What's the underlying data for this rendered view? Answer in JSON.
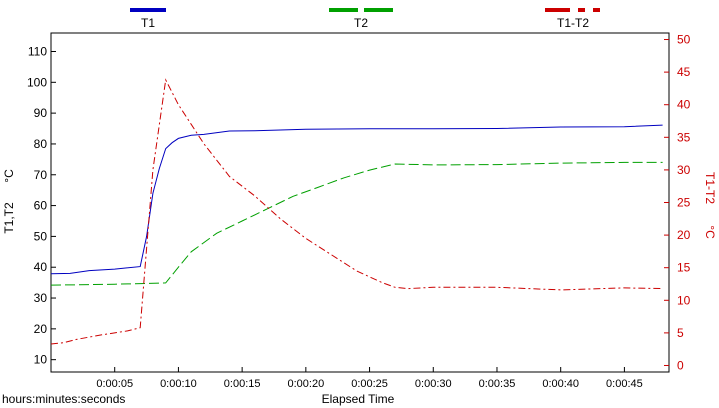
{
  "chart_data": {
    "type": "line",
    "xlabel": "Elapsed Time",
    "x_unit_label": "hours:minutes:seconds",
    "ylabel_left": "T1,T2",
    "ylabel_left_unit": "°C",
    "ylabel_right": "T1-T2",
    "ylabel_right_unit": "°C",
    "xlim": [
      0,
      48.5
    ],
    "ylim_left": [
      6,
      116
    ],
    "ylim_right": [
      -1,
      51
    ],
    "x_ticks": [
      5,
      10,
      15,
      20,
      25,
      30,
      35,
      40,
      45
    ],
    "x_tick_labels": [
      "0:00:05",
      "0:00:10",
      "0:00:15",
      "0:00:20",
      "0:00:25",
      "0:00:30",
      "0:00:35",
      "0:00:40",
      "0:00:45"
    ],
    "y_ticks_left": [
      10,
      20,
      30,
      40,
      50,
      60,
      70,
      80,
      90,
      100,
      110
    ],
    "y_ticks_right": [
      0,
      5,
      10,
      15,
      20,
      25,
      30,
      35,
      40,
      45,
      50
    ],
    "legend_position": "top",
    "series": [
      {
        "name": "T1",
        "axis": "left",
        "color": "#0000c0",
        "style": "solid",
        "x": [
          0,
          1.5,
          3,
          5,
          7,
          7.5,
          8,
          8.5,
          9,
          9.5,
          10,
          11,
          12,
          14,
          16,
          20,
          25,
          30,
          35,
          40,
          45,
          48
        ],
        "values": [
          37.9,
          38,
          38.9,
          39.4,
          40.2,
          50,
          64,
          72,
          78.5,
          80.4,
          81.8,
          82.8,
          83.1,
          84.2,
          84.3,
          84.8,
          84.9,
          84.9,
          85,
          85.5,
          85.6,
          86.1
        ]
      },
      {
        "name": "T2",
        "axis": "left",
        "color": "#00a000",
        "style": "dashed",
        "x": [
          0,
          2,
          5,
          7,
          9,
          10,
          11,
          13,
          15,
          17,
          19,
          21,
          23,
          25,
          27,
          28,
          30,
          35,
          40,
          45,
          48
        ],
        "values": [
          34.2,
          34.3,
          34.5,
          34.7,
          34.9,
          40,
          45,
          51,
          55,
          59,
          63,
          66,
          69,
          71.5,
          73.5,
          73.4,
          73.2,
          73.3,
          73.8,
          74,
          74
        ]
      },
      {
        "name": "T1-T2",
        "axis": "right",
        "color": "#cc0000",
        "style": "dashdot",
        "x": [
          0,
          1,
          2,
          4,
          6,
          7,
          8,
          9,
          10,
          11,
          12,
          14,
          16,
          18,
          20,
          22,
          24,
          26,
          27,
          28,
          30,
          35,
          40,
          45,
          48
        ],
        "values": [
          3.3,
          3.5,
          4,
          4.7,
          5.3,
          5.8,
          30,
          43.8,
          40,
          37,
          34,
          29,
          26,
          22.5,
          19.5,
          17,
          14.5,
          12.7,
          12,
          11.8,
          12,
          12,
          11.6,
          11.9,
          11.8
        ]
      }
    ]
  }
}
